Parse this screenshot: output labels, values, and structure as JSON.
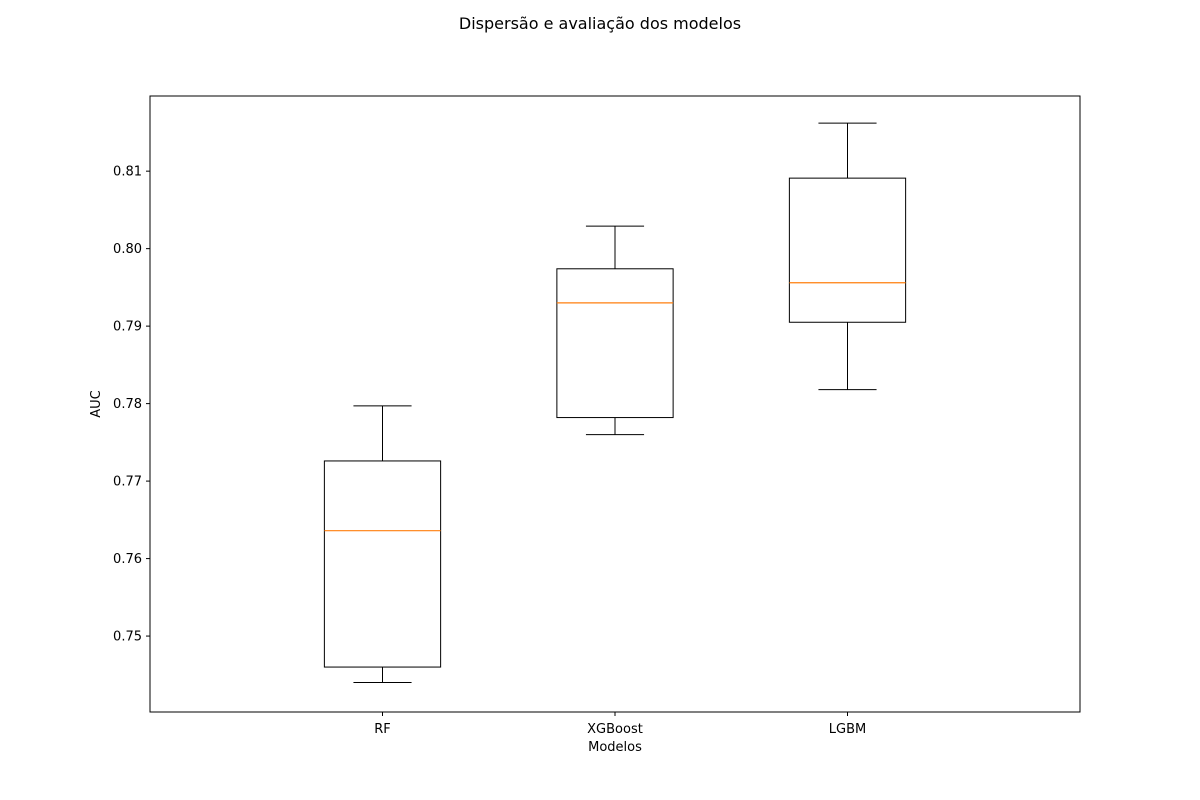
{
  "chart_data": {
    "type": "box",
    "title": "Dispersão e avaliação dos modelos",
    "xlabel": "Modelos",
    "ylabel": "AUC",
    "ylim": [
      0.7402,
      0.8197
    ],
    "yticks": [
      0.75,
      0.76,
      0.77,
      0.78,
      0.79,
      0.8,
      0.81
    ],
    "ytick_labels": [
      "0.75",
      "0.76",
      "0.77",
      "0.78",
      "0.79",
      "0.80",
      "0.81"
    ],
    "categories": [
      "RF",
      "XGBoost",
      "LGBM"
    ],
    "boxes": [
      {
        "name": "RF",
        "whisker_low": 0.744,
        "q1": 0.746,
        "median": 0.7636,
        "q3": 0.7726,
        "whisker_high": 0.7797
      },
      {
        "name": "XGBoost",
        "whisker_low": 0.776,
        "q1": 0.7782,
        "median": 0.793,
        "q3": 0.7974,
        "whisker_high": 0.8029
      },
      {
        "name": "LGBM",
        "whisker_low": 0.7818,
        "q1": 0.7905,
        "median": 0.7956,
        "q3": 0.8091,
        "whisker_high": 0.8162
      }
    ],
    "grid": false,
    "colors": {
      "box": "#000000",
      "median": "#ff7f0e"
    }
  }
}
